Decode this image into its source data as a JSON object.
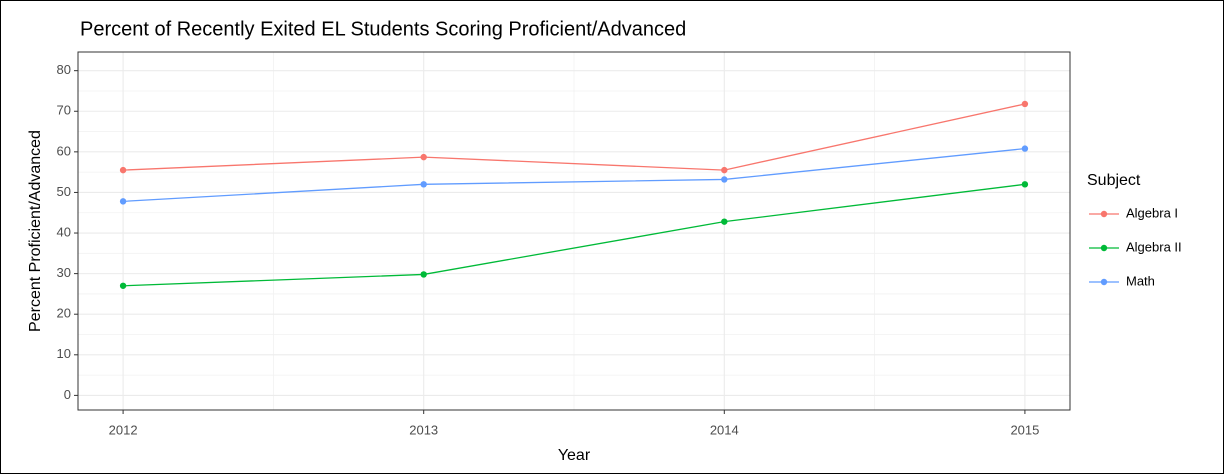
{
  "chart_data": {
    "type": "line",
    "title": "Percent of Recently Exited EL Students Scoring Proficient/Advanced",
    "x_label": "Year",
    "y_label": "Percent Proficient/Advanced",
    "legend_title": "Subject",
    "legend_position": "right",
    "x": [
      2012,
      2013,
      2014,
      2015
    ],
    "series": [
      {
        "name": "Algebra I",
        "color": "#f8766d",
        "values": [
          55.5,
          58.7,
          55.5,
          71.8
        ]
      },
      {
        "name": "Algebra II",
        "color": "#00ba38",
        "values": [
          27,
          29.8,
          42.8,
          52
        ]
      },
      {
        "name": "Math",
        "color": "#619cff",
        "values": [
          47.8,
          52,
          53.2,
          60.8
        ]
      }
    ],
    "xlim": [
      2011.85,
      2015.15
    ],
    "xticks": [
      2012,
      2013,
      2014,
      2015
    ],
    "ylim": [
      -3.6,
      84.6
    ],
    "yticks": [
      0,
      10,
      20,
      30,
      40,
      50,
      60,
      70,
      80
    ],
    "grid": true
  }
}
